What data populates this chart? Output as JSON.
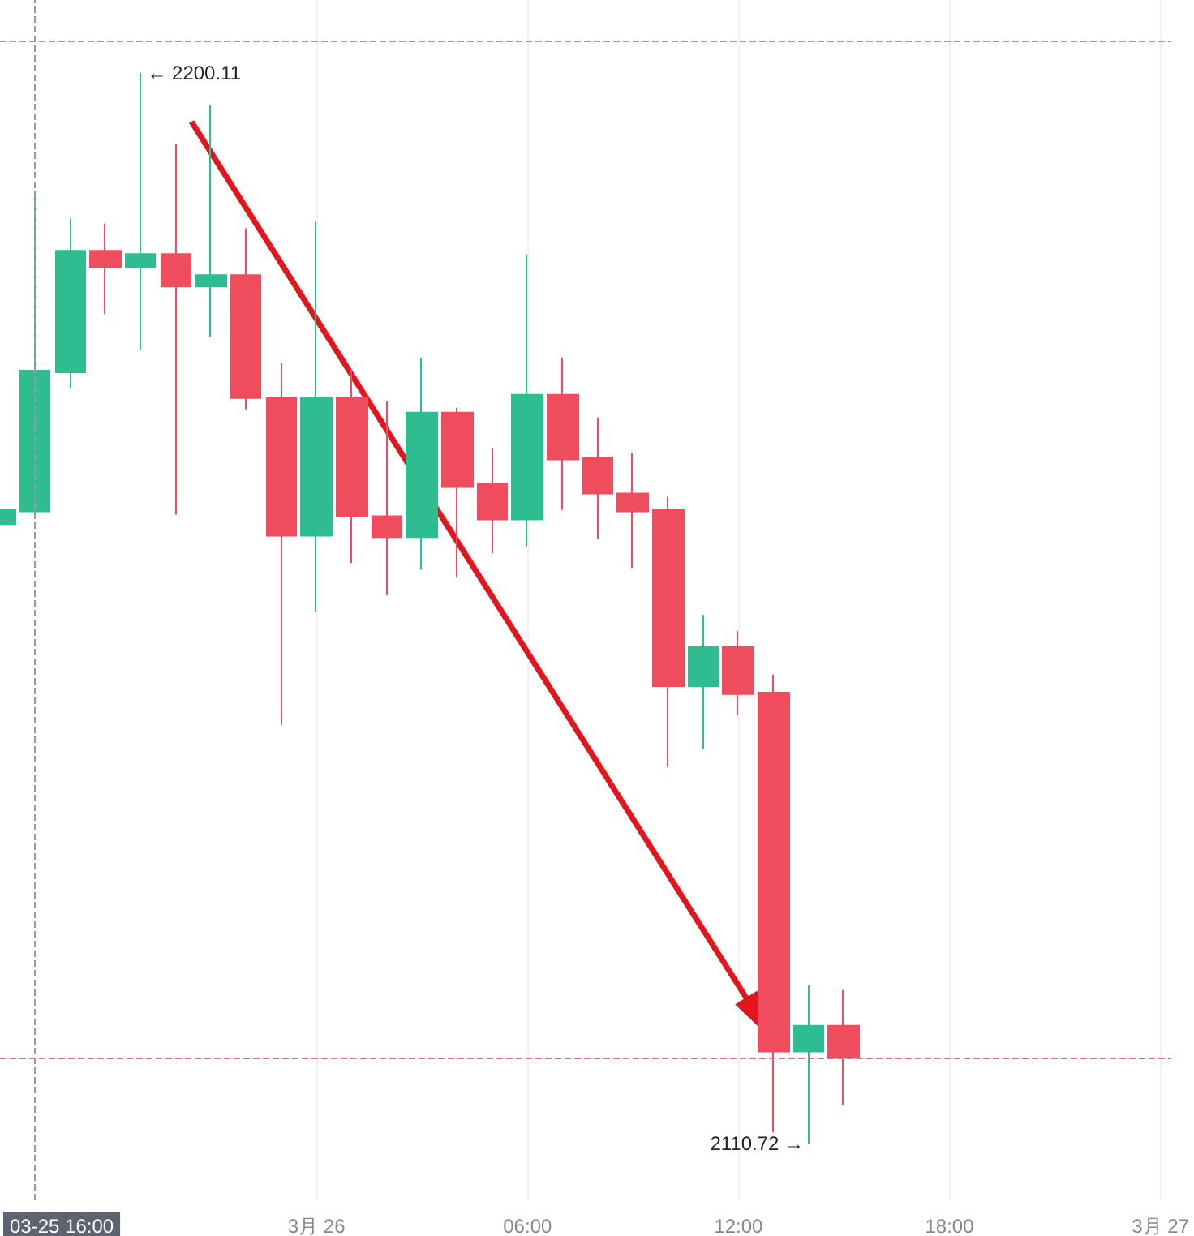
{
  "chart_data": {
    "type": "candlestick",
    "x": [
      -9,
      -8,
      -7,
      -6,
      -5,
      -4,
      -3,
      -2,
      -1,
      0,
      1,
      2,
      3,
      4,
      5,
      6,
      7,
      8,
      9,
      10,
      11,
      12,
      13,
      14,
      15
    ],
    "ohlc": [
      [
        2162.44,
        2163.65,
        2162.44,
        2163.65
      ],
      [
        2163.52,
        2189.98,
        2163.0,
        2175.26
      ],
      [
        2175.13,
        2187.96,
        2173.78,
        2185.26
      ],
      [
        2185.26,
        2187.55,
        2179.99,
        2183.91
      ],
      [
        2183.91,
        2200.11,
        2177.02,
        2184.99
      ],
      [
        2184.99,
        2194.17,
        2163.25,
        2182.29
      ],
      [
        2182.29,
        2197.41,
        2178.1,
        2183.23
      ],
      [
        2183.23,
        2187.15,
        2172.02,
        2172.97
      ],
      [
        2172.97,
        2175.94,
        2145.69,
        2161.49
      ],
      [
        2161.49,
        2187.69,
        2155.15,
        2172.97
      ],
      [
        2172.97,
        2175.4,
        2159.19,
        2163.11
      ],
      [
        2163.11,
        2172.7,
        2156.5,
        2161.36
      ],
      [
        2161.36,
        2176.34,
        2158.65,
        2171.75
      ],
      [
        2171.75,
        2172.16,
        2157.98,
        2165.54
      ],
      [
        2165.81,
        2168.78,
        2160.01,
        2162.84
      ],
      [
        2162.84,
        2184.99,
        2160.55,
        2173.24
      ],
      [
        2173.24,
        2176.34,
        2163.65,
        2167.84
      ],
      [
        2167.97,
        2171.35,
        2161.22,
        2165.0
      ],
      [
        2165.0,
        2168.38,
        2158.79,
        2163.52
      ],
      [
        2163.65,
        2164.73,
        2142.18,
        2148.93
      ],
      [
        2148.93,
        2154.87,
        2143.67,
        2152.17
      ],
      [
        2152.17,
        2153.52,
        2146.5,
        2148.26
      ],
      [
        2148.39,
        2149.88,
        2111.67,
        2118.42
      ],
      [
        2118.42,
        2123.95,
        2110.72,
        2120.58
      ],
      [
        2120.58,
        2123.55,
        2113.96,
        2117.88
      ]
    ],
    "colors": [
      "#2ebd91",
      "#2ebd91",
      "#2ebd91",
      "#ef4d5e",
      "#2ebd91",
      "#ef4d5e",
      "#2ebd91",
      "#ef4d5e",
      "#ef4d5e",
      "#2ebd91",
      "#ef4d5e",
      "#ef4d5e",
      "#2ebd91",
      "#ef4d5e",
      "#ef4d5e",
      "#2ebd91",
      "#ef4d5e",
      "#ef4d5e",
      "#ef4d5e",
      "#ef4d5e",
      "#2ebd91",
      "#ef4d5e",
      "#ef4d5e",
      "#2ebd91",
      "#ef4d5e"
    ],
    "xlim": [
      -9,
      24.31
    ],
    "xticks": [
      {
        "value": 0,
        "label": "3月 26"
      },
      {
        "value": 6,
        "label": "06:00"
      },
      {
        "value": 12,
        "label": "12:00"
      },
      {
        "value": 18,
        "label": "18:00"
      },
      {
        "value": 24,
        "label": "3月 27"
      }
    ],
    "ylim": [
      2106,
      2206.2
    ],
    "tick_labels": "x",
    "grid": "x",
    "ref_lines": [
      {
        "axis": "x",
        "value": -8,
        "color": "#9a9a9a",
        "line_style": "dashed"
      },
      {
        "axis": "y",
        "value": 2202.8,
        "color": "#9a9a9a",
        "line_style": "dashed"
      },
      {
        "axis": "y",
        "value": 2117.88,
        "color": "#e0707a",
        "line_style": "dashed"
      }
    ],
    "annotations": [
      {
        "text": "← 2200.11",
        "x": -5,
        "y": 2200.11
      },
      {
        "text": "2110.72 →",
        "x": 14,
        "y": 2110.72
      },
      "03-25 16:00"
    ]
  }
}
